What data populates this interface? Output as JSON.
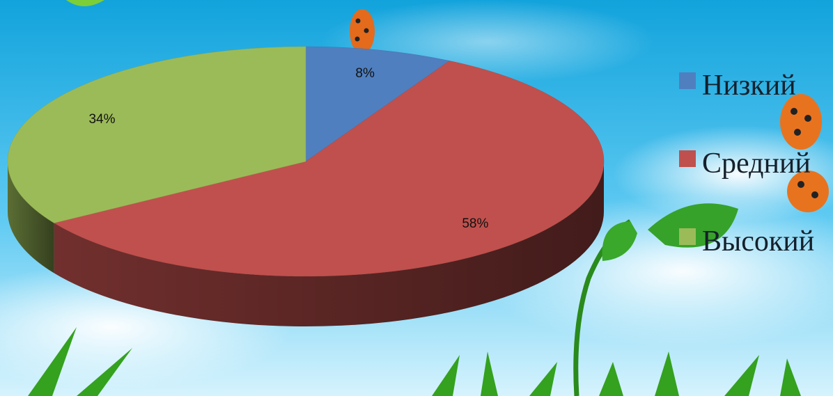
{
  "chart_data": {
    "type": "pie",
    "style": "3d",
    "title": "",
    "legend_position": "right",
    "slices": [
      {
        "label": "Низкий",
        "value": 8,
        "data_label": "8%",
        "color": "#4f7fbf"
      },
      {
        "label": "Средний",
        "value": 58,
        "data_label": "58%",
        "color": "#c0504d"
      },
      {
        "label": "Высокий",
        "value": 34,
        "data_label": "34%",
        "color": "#9bbb59"
      }
    ]
  },
  "colors": {
    "sky_top": "#19a9e0",
    "sky_bottom": "#bfe9fb",
    "grass": "#2f9a1e"
  }
}
